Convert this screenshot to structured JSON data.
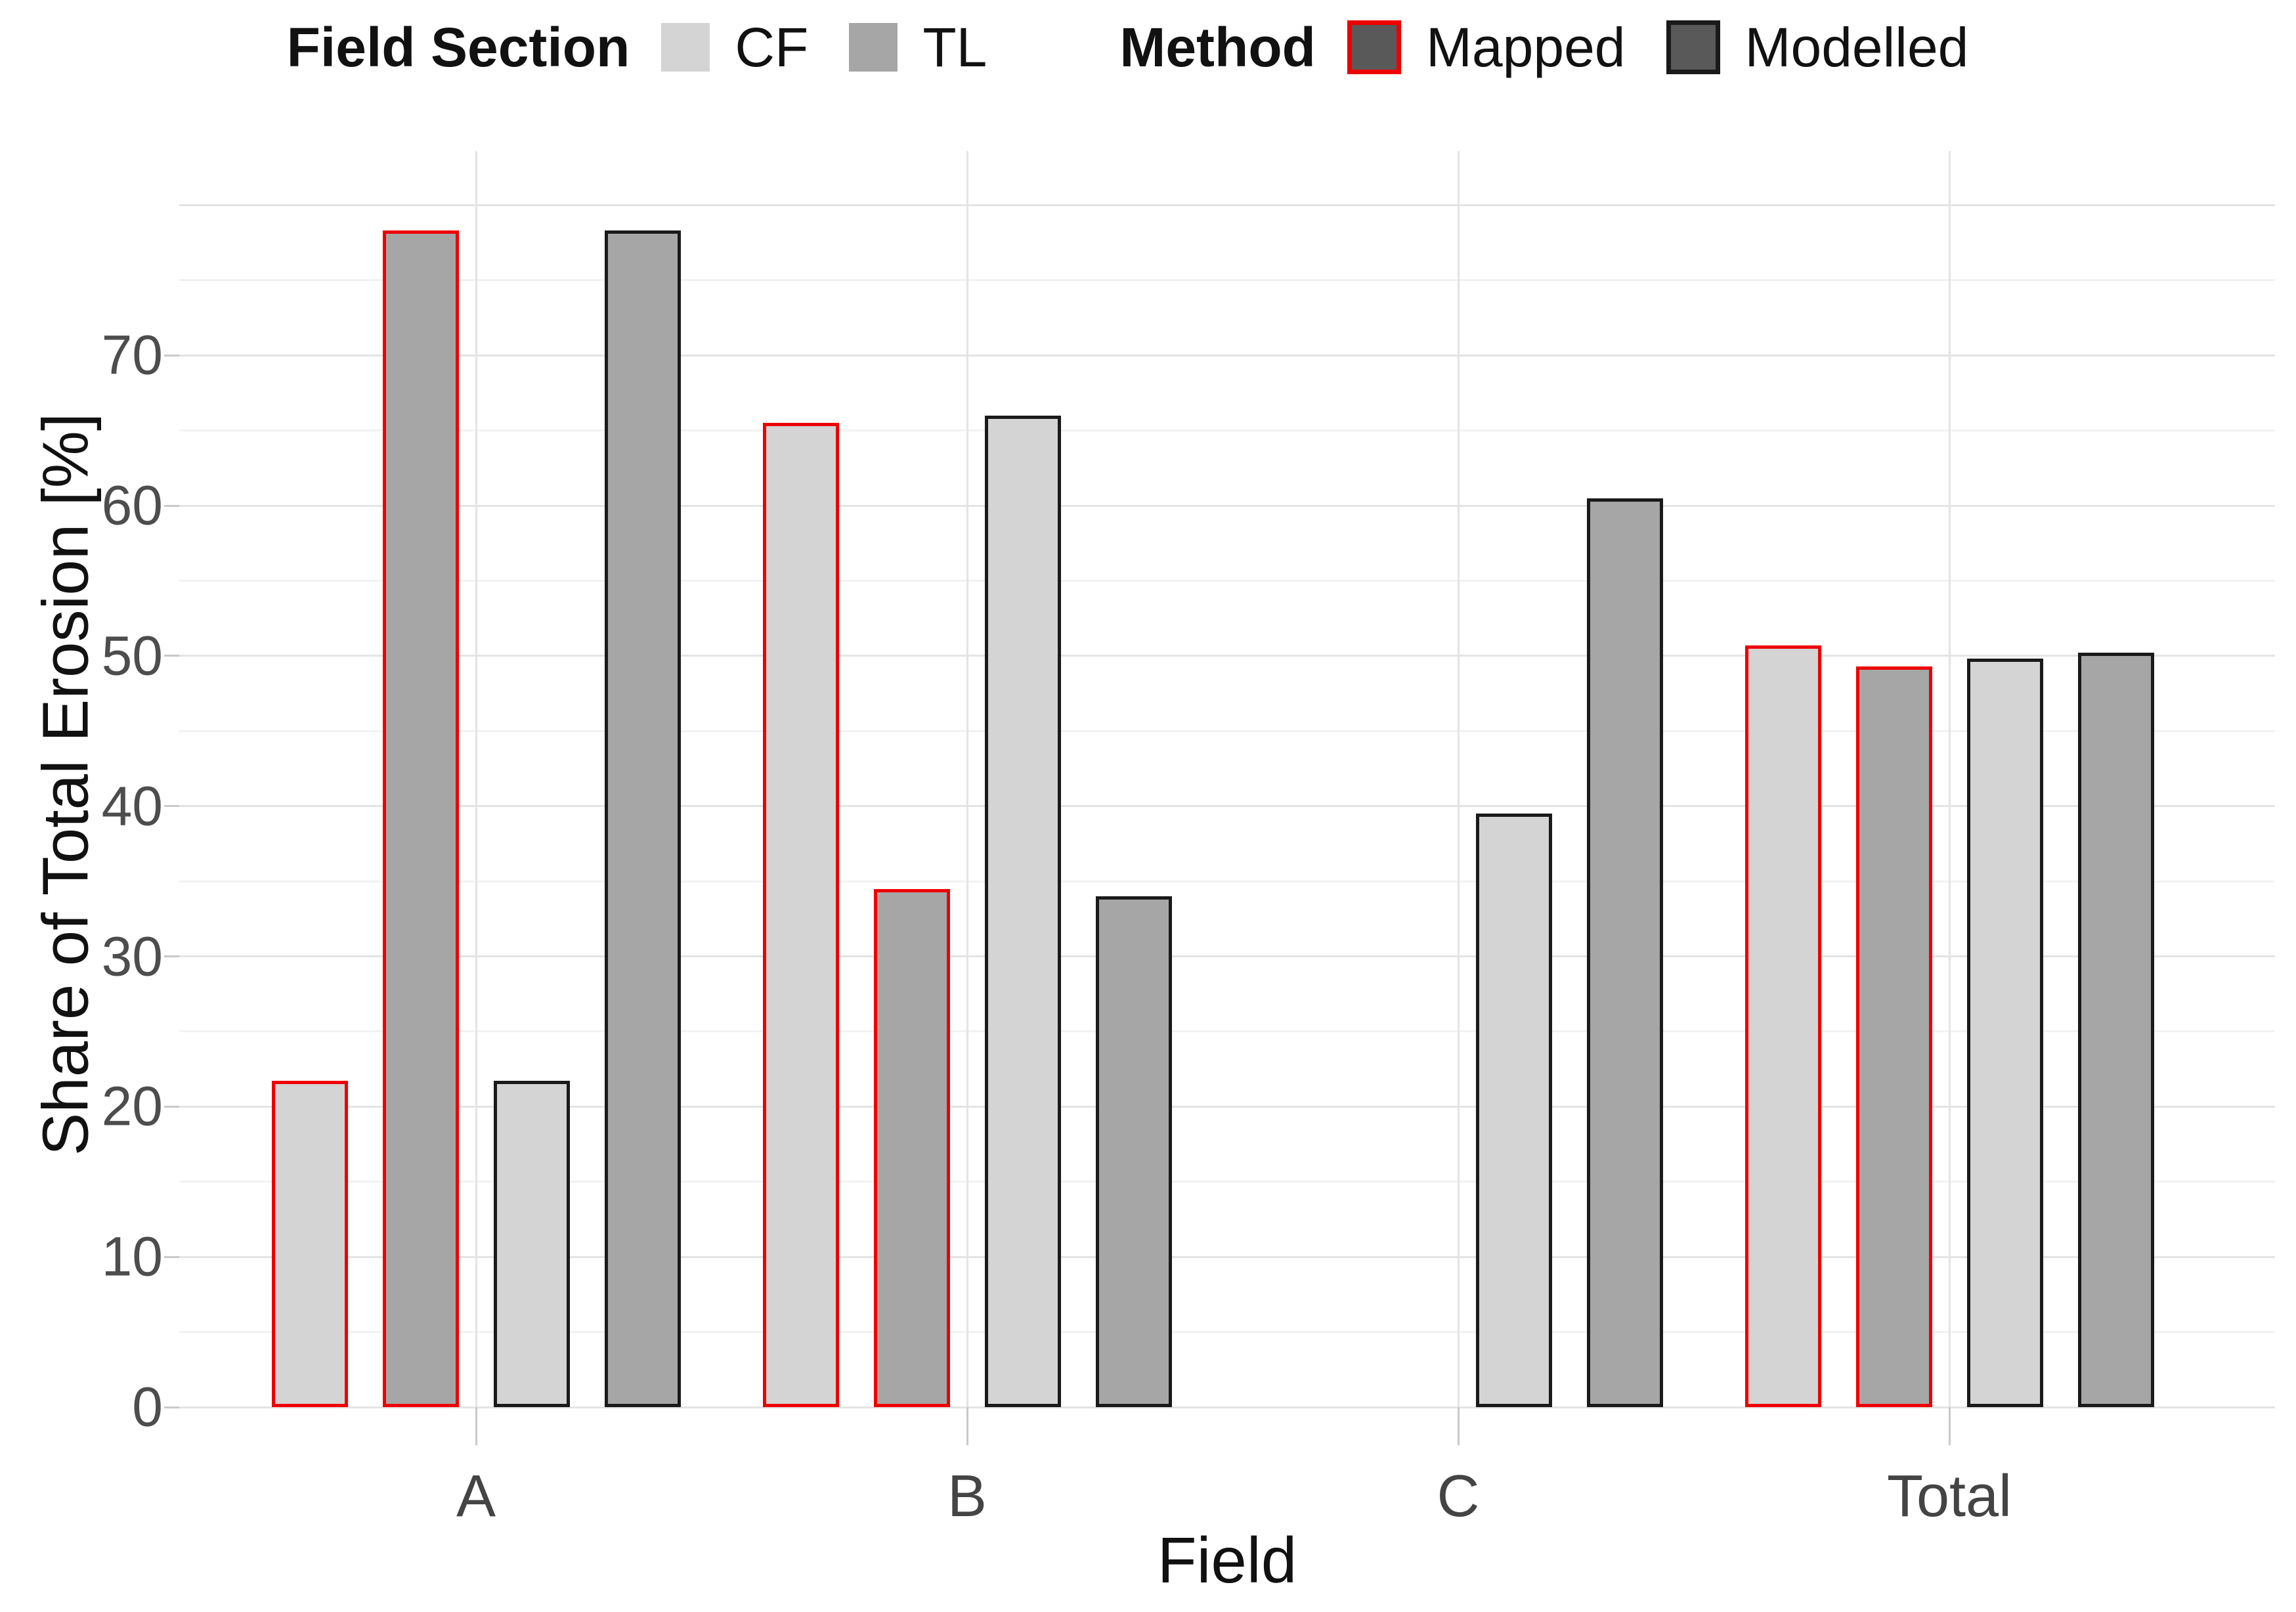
{
  "chart_data": {
    "type": "bar",
    "title": "",
    "xlabel": "Field",
    "ylabel": "Share of Total Erosion [%]",
    "categories": [
      "A",
      "B",
      "C",
      "Total"
    ],
    "series": [
      {
        "name": "CF Mapped",
        "field_section": "CF",
        "method": "Mapped",
        "values": [
          21.7,
          65.5,
          null,
          50.7
        ]
      },
      {
        "name": "TL Mapped",
        "field_section": "TL",
        "method": "Mapped",
        "values": [
          78.3,
          34.5,
          null,
          49.3
        ]
      },
      {
        "name": "CF Modelled",
        "field_section": "CF",
        "method": "Modelled",
        "values": [
          21.7,
          66.0,
          39.5,
          49.8
        ]
      },
      {
        "name": "TL Modelled",
        "field_section": "TL",
        "method": "Modelled",
        "values": [
          78.3,
          34.0,
          60.5,
          50.2
        ]
      }
    ],
    "ylim": [
      0,
      83.6
    ],
    "yticks": [
      0,
      10,
      20,
      30,
      40,
      50,
      60,
      70
    ],
    "minor_tick_step": 5,
    "grid": true,
    "legend_position": "top",
    "legend": {
      "section_title": "Field Section",
      "cf_label": "CF",
      "tl_label": "TL",
      "method_title": "Method",
      "mapped_label": "Mapped",
      "modelled_label": "Modelled"
    },
    "colors": {
      "cf_fill": "#d4d4d4",
      "tl_fill": "#a6a6a6",
      "mapped_stroke": "#ee0000",
      "modelled_stroke": "#1a1a1a",
      "method_key_fill": "#595959",
      "grid_major": "#e4e4e4",
      "grid_minor": "#f2f2f2",
      "tick_mark": "#c9c9c9",
      "axis_text": "#4d4d4d",
      "axis_title": "#111111"
    }
  }
}
